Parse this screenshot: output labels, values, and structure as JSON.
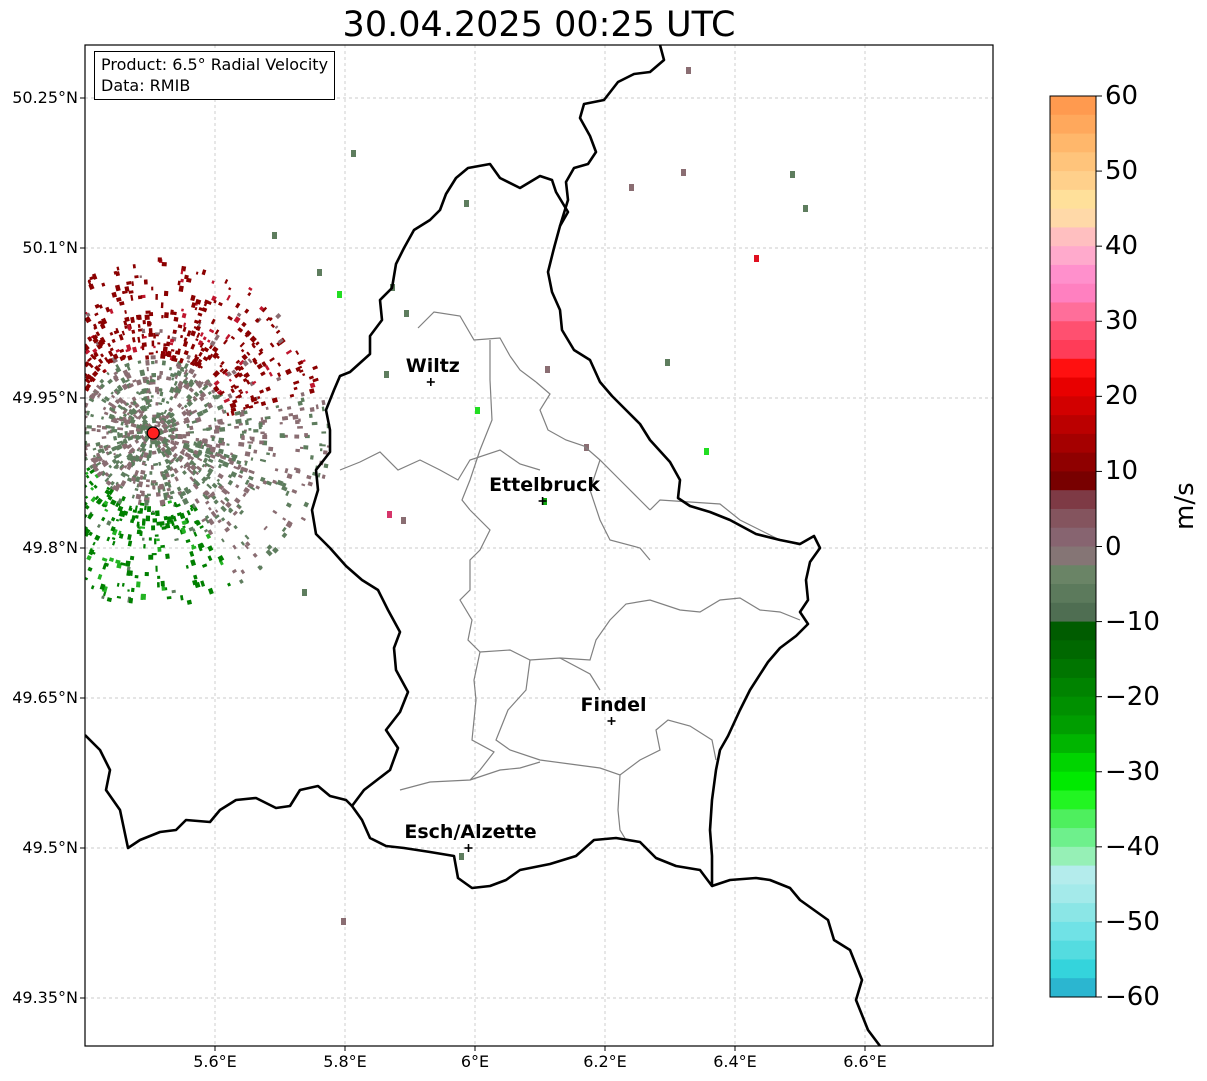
{
  "title": "30.04.2025 00:25 UTC",
  "info": {
    "product": "Product: 6.5° Radial Velocity",
    "data": "Data: RMIB"
  },
  "map": {
    "lon_range": [
      5.4,
      6.8
    ],
    "lat_range": [
      49.3,
      50.3
    ],
    "lat_ticks": [
      {
        "value": 50.25,
        "label": "50.25°N"
      },
      {
        "value": 50.1,
        "label": "50.1°N"
      },
      {
        "value": 49.95,
        "label": "49.95°N"
      },
      {
        "value": 49.8,
        "label": "49.8°N"
      },
      {
        "value": 49.65,
        "label": "49.65°N"
      },
      {
        "value": 49.5,
        "label": "49.5°N"
      },
      {
        "value": 49.35,
        "label": "49.35°N"
      }
    ],
    "lon_ticks": [
      {
        "value": 5.6,
        "label": "5.6°E"
      },
      {
        "value": 5.8,
        "label": "5.8°E"
      },
      {
        "value": 6.0,
        "label": "6°E"
      },
      {
        "value": 6.2,
        "label": "6.2°E"
      },
      {
        "value": 6.4,
        "label": "6.4°E"
      },
      {
        "value": 6.6,
        "label": "6.6°E"
      }
    ],
    "radar_site": {
      "lon": 5.505,
      "lat": 49.915
    },
    "cities": [
      {
        "name": "Wiltz",
        "lon": 5.932,
        "lat": 49.966
      },
      {
        "name": "Ettelbruck",
        "lon": 6.104,
        "lat": 49.847
      },
      {
        "name": "Findel",
        "lon": 6.21,
        "lat": 49.627
      },
      {
        "name": "Esch/Alzette",
        "lon": 5.99,
        "lat": 49.5
      }
    ],
    "colors": {
      "outbound_strong": "#8b0000",
      "inbound_strong": "#008000",
      "near_zero_pos": "#8a6d72",
      "near_zero_neg": "#5e7d5e",
      "border": "#000000",
      "canton_line": "#808080",
      "radar_marker": "#ff2020"
    }
  },
  "colorbar": {
    "unit": "m/s",
    "min": -60,
    "max": 60,
    "ticks": [
      {
        "value": 60,
        "label": "60"
      },
      {
        "value": 50,
        "label": "50"
      },
      {
        "value": 40,
        "label": "40"
      },
      {
        "value": 30,
        "label": "30"
      },
      {
        "value": 20,
        "label": "20"
      },
      {
        "value": 10,
        "label": "10"
      },
      {
        "value": 0,
        "label": "0"
      },
      {
        "value": -10,
        "label": "−10"
      },
      {
        "value": -20,
        "label": "−20"
      },
      {
        "value": -30,
        "label": "−30"
      },
      {
        "value": -40,
        "label": "−40"
      },
      {
        "value": -50,
        "label": "−50"
      },
      {
        "value": -60,
        "label": "−60"
      }
    ]
  }
}
